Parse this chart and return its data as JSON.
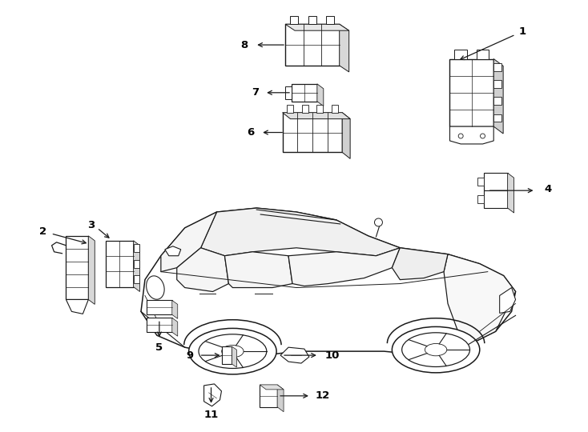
{
  "background_color": "#ffffff",
  "line_color": "#1a1a1a",
  "text_color": "#000000",
  "fig_width": 7.34,
  "fig_height": 5.4,
  "dpi": 100
}
